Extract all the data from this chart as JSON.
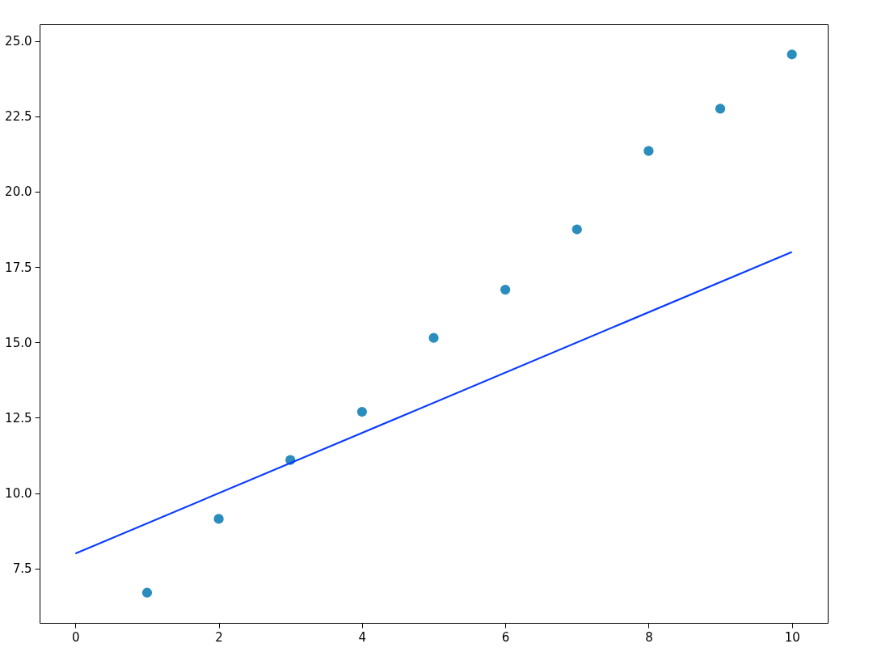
{
  "chart_data": {
    "type": "scatter",
    "x": [
      1,
      2,
      3,
      4,
      5,
      6,
      7,
      8,
      9,
      10
    ],
    "series": [
      {
        "color": "#2b8cbe",
        "marker": "circle",
        "values": [
          6.7,
          9.15,
          11.1,
          12.7,
          15.15,
          16.75,
          18.75,
          21.35,
          22.75,
          24.55
        ]
      },
      {
        "type": "line",
        "color": "#0a3cff",
        "x": [
          0,
          10
        ],
        "values": [
          8,
          18
        ]
      }
    ],
    "xlim": [
      -0.5,
      10.5
    ],
    "xticks": [
      0,
      2,
      4,
      6,
      8,
      10
    ],
    "ylim": [
      5.7,
      25.55
    ],
    "yticks": [
      7.5,
      {
        "value": 10,
        "label": "10.0"
      },
      12.5,
      {
        "value": 15,
        "label": "15.0"
      },
      17.5,
      {
        "value": 20,
        "label": "20.0"
      },
      22.5,
      {
        "value": 25,
        "label": "25.0"
      }
    ],
    "grid": false
  }
}
